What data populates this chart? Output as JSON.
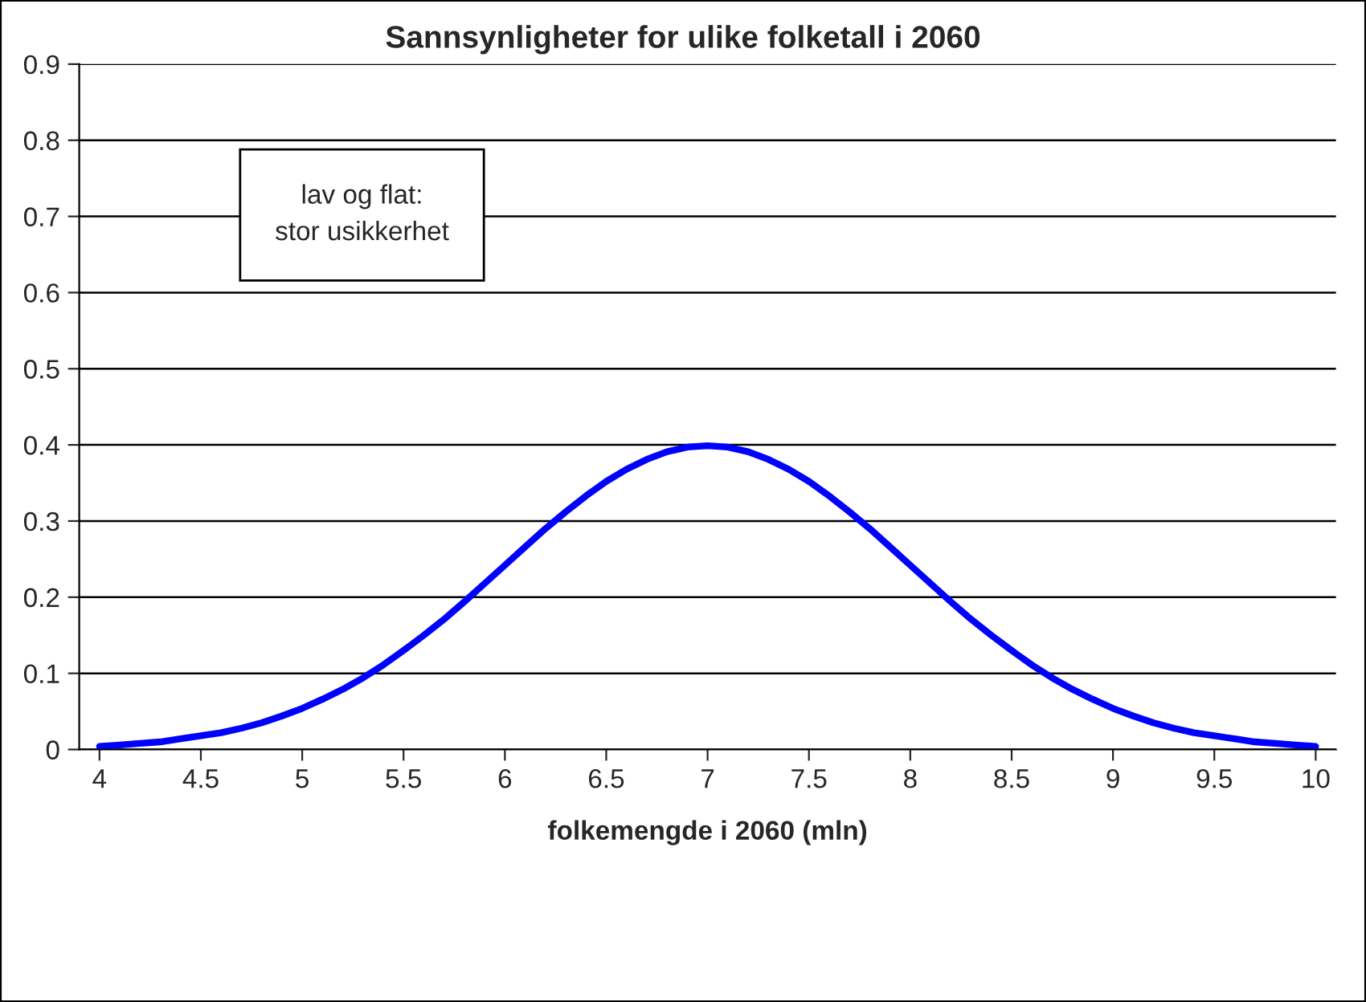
{
  "chart_data": {
    "type": "line",
    "title": "Sannsynligheter for ulike folketall i 2060",
    "xlabel": "folkemengde i 2060 (mln)",
    "x": [
      4,
      4.1,
      4.2,
      4.3,
      4.4,
      4.5,
      4.6,
      4.7,
      4.8,
      4.9,
      5,
      5.1,
      5.2,
      5.3,
      5.4,
      5.5,
      5.6,
      5.7,
      5.8,
      5.9,
      6,
      6.1,
      6.2,
      6.3,
      6.4,
      6.5,
      6.6,
      6.7,
      6.8,
      6.9,
      7,
      7.1,
      7.2,
      7.3,
      7.4,
      7.5,
      7.6,
      7.7,
      7.8,
      7.9,
      8,
      8.1,
      8.2,
      8.3,
      8.4,
      8.5,
      8.6,
      8.7,
      8.8,
      8.9,
      9,
      9.1,
      9.2,
      9.3,
      9.4,
      9.5,
      9.6,
      9.7,
      9.8,
      9.9,
      10
    ],
    "series": [
      {
        "color": "#0000ff",
        "values": [
          0.004,
          0.006,
          0.008,
          0.01,
          0.014,
          0.018,
          0.022,
          0.028,
          0.035,
          0.044,
          0.054,
          0.066,
          0.079,
          0.094,
          0.111,
          0.13,
          0.15,
          0.171,
          0.194,
          0.218,
          0.242,
          0.266,
          0.29,
          0.312,
          0.333,
          0.352,
          0.368,
          0.381,
          0.391,
          0.397,
          0.399,
          0.397,
          0.391,
          0.381,
          0.368,
          0.352,
          0.333,
          0.312,
          0.29,
          0.266,
          0.242,
          0.218,
          0.194,
          0.171,
          0.15,
          0.13,
          0.111,
          0.094,
          0.079,
          0.066,
          0.054,
          0.044,
          0.035,
          0.028,
          0.022,
          0.018,
          0.014,
          0.01,
          0.008,
          0.006,
          0.004
        ]
      }
    ],
    "xlim": [
      3.9,
      10.1
    ],
    "xticks": [
      4,
      4.5,
      5,
      5.5,
      6,
      6.5,
      7,
      7.5,
      8,
      8.5,
      9,
      9.5,
      10
    ],
    "ylim": [
      0,
      0.9
    ],
    "yticks": [
      0,
      0.1,
      0.2,
      0.3,
      0.4,
      0.5,
      0.6,
      0.7,
      0.8,
      0.9
    ],
    "grid": "y",
    "marker": "none",
    "line_style": "solid",
    "annotations": [
      "lav og flat:\nstor usikkerhet"
    ]
  }
}
